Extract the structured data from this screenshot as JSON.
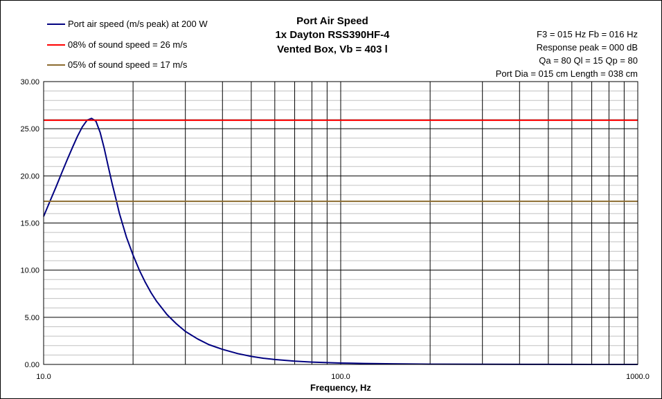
{
  "chart_data": {
    "type": "line",
    "title_lines": [
      "Port Air Speed",
      "1x Dayton RSS390HF-4",
      "Vented Box, Vb = 403 l"
    ],
    "xlabel": "Frequency, Hz",
    "ylabel": "",
    "x_scale": "log",
    "xlim": [
      10,
      1000
    ],
    "ylim": [
      0,
      30
    ],
    "x_tick_labels": [
      "10.0",
      "100.0",
      "1000.0"
    ],
    "y_tick_labels": [
      "0.00",
      "5.00",
      "10.00",
      "15.00",
      "20.00",
      "25.00",
      "30.00"
    ],
    "grid": true,
    "legend_position": "top-left",
    "info_text": [
      "F3 = 015 Hz  Fb = 016 Hz",
      "Response peak = 000 dB",
      "Qa = 80  Ql = 15  Qp = 80",
      "Port Dia = 015 cm  Length = 038 cm"
    ],
    "series": [
      {
        "name": "Port air speed (m/s peak) at 200 W",
        "color": "#000080",
        "x": [
          10,
          10.5,
          11,
          11.5,
          12,
          12.5,
          13,
          13.5,
          14,
          14.5,
          15,
          15.5,
          16,
          16.5,
          17,
          17.5,
          18,
          19,
          20,
          21,
          22,
          23,
          24,
          26,
          28,
          30,
          33,
          36,
          40,
          45,
          50,
          55,
          60,
          70,
          80,
          90,
          100,
          120,
          150,
          200,
          300,
          500,
          700,
          1000
        ],
        "y": [
          15.7,
          17.3,
          18.8,
          20.3,
          21.7,
          23.0,
          24.2,
          25.2,
          25.9,
          26.1,
          25.8,
          24.6,
          22.9,
          21.0,
          19.2,
          17.6,
          16.0,
          13.5,
          11.6,
          10.0,
          8.7,
          7.6,
          6.7,
          5.3,
          4.3,
          3.5,
          2.7,
          2.1,
          1.6,
          1.15,
          0.85,
          0.65,
          0.52,
          0.35,
          0.25,
          0.19,
          0.15,
          0.1,
          0.06,
          0.03,
          0.015,
          0.005,
          0.003,
          0.001
        ]
      },
      {
        "name": "08% of sound speed = 26 m/s",
        "color": "#ff0000",
        "x": [
          10,
          1000
        ],
        "y": [
          25.9,
          25.9
        ]
      },
      {
        "name": "05% of sound speed = 17 m/s",
        "color": "#8b6b2e",
        "x": [
          10,
          1000
        ],
        "y": [
          17.3,
          17.3
        ]
      }
    ]
  }
}
